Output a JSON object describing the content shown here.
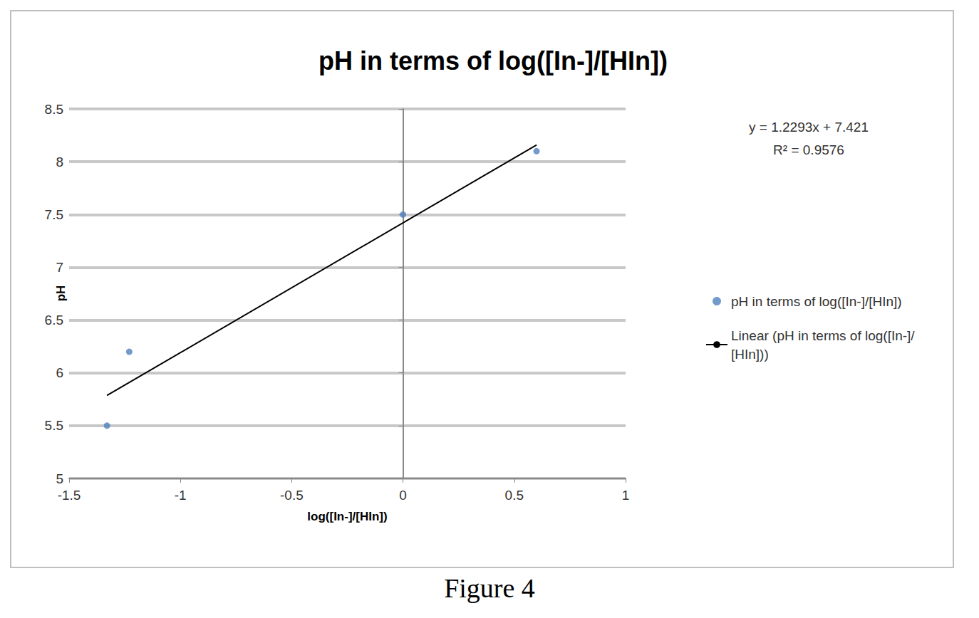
{
  "chart_data": {
    "type": "scatter",
    "title": "pH in terms of log([In-]/[HIn])",
    "x_label": "log([In-]/[HIn])",
    "y_label": "pH",
    "series": [
      {
        "name": "pH in terms of log([In-]/[HIn])",
        "type": "scatter",
        "marker": "circle",
        "color": "#4f81bd",
        "x": [
          -1.33,
          -1.23,
          0,
          0.6
        ],
        "values": [
          5.5,
          6.2,
          7.5,
          8.1
        ]
      },
      {
        "name": "Linear (pH in terms of log([In-]/[HIn]))",
        "type": "line",
        "line_style": "solid",
        "color": "#000000",
        "x": [
          -1.33,
          0.6
        ],
        "values": [
          5.786,
          8.159
        ]
      }
    ],
    "annotations": [
      "y = 1.2293x + 7.421",
      "R² = 0.9576"
    ],
    "caption": "Figure 4",
    "xlim": [
      -1.5,
      1
    ],
    "xticks": [
      -1.5,
      -1,
      -0.5,
      0,
      0.5,
      1
    ],
    "ylim": [
      5,
      8.5
    ],
    "yticks": [
      5,
      5.5,
      6,
      6.5,
      7,
      7.5,
      8,
      8.5
    ],
    "grid": true,
    "legend": "right"
  }
}
